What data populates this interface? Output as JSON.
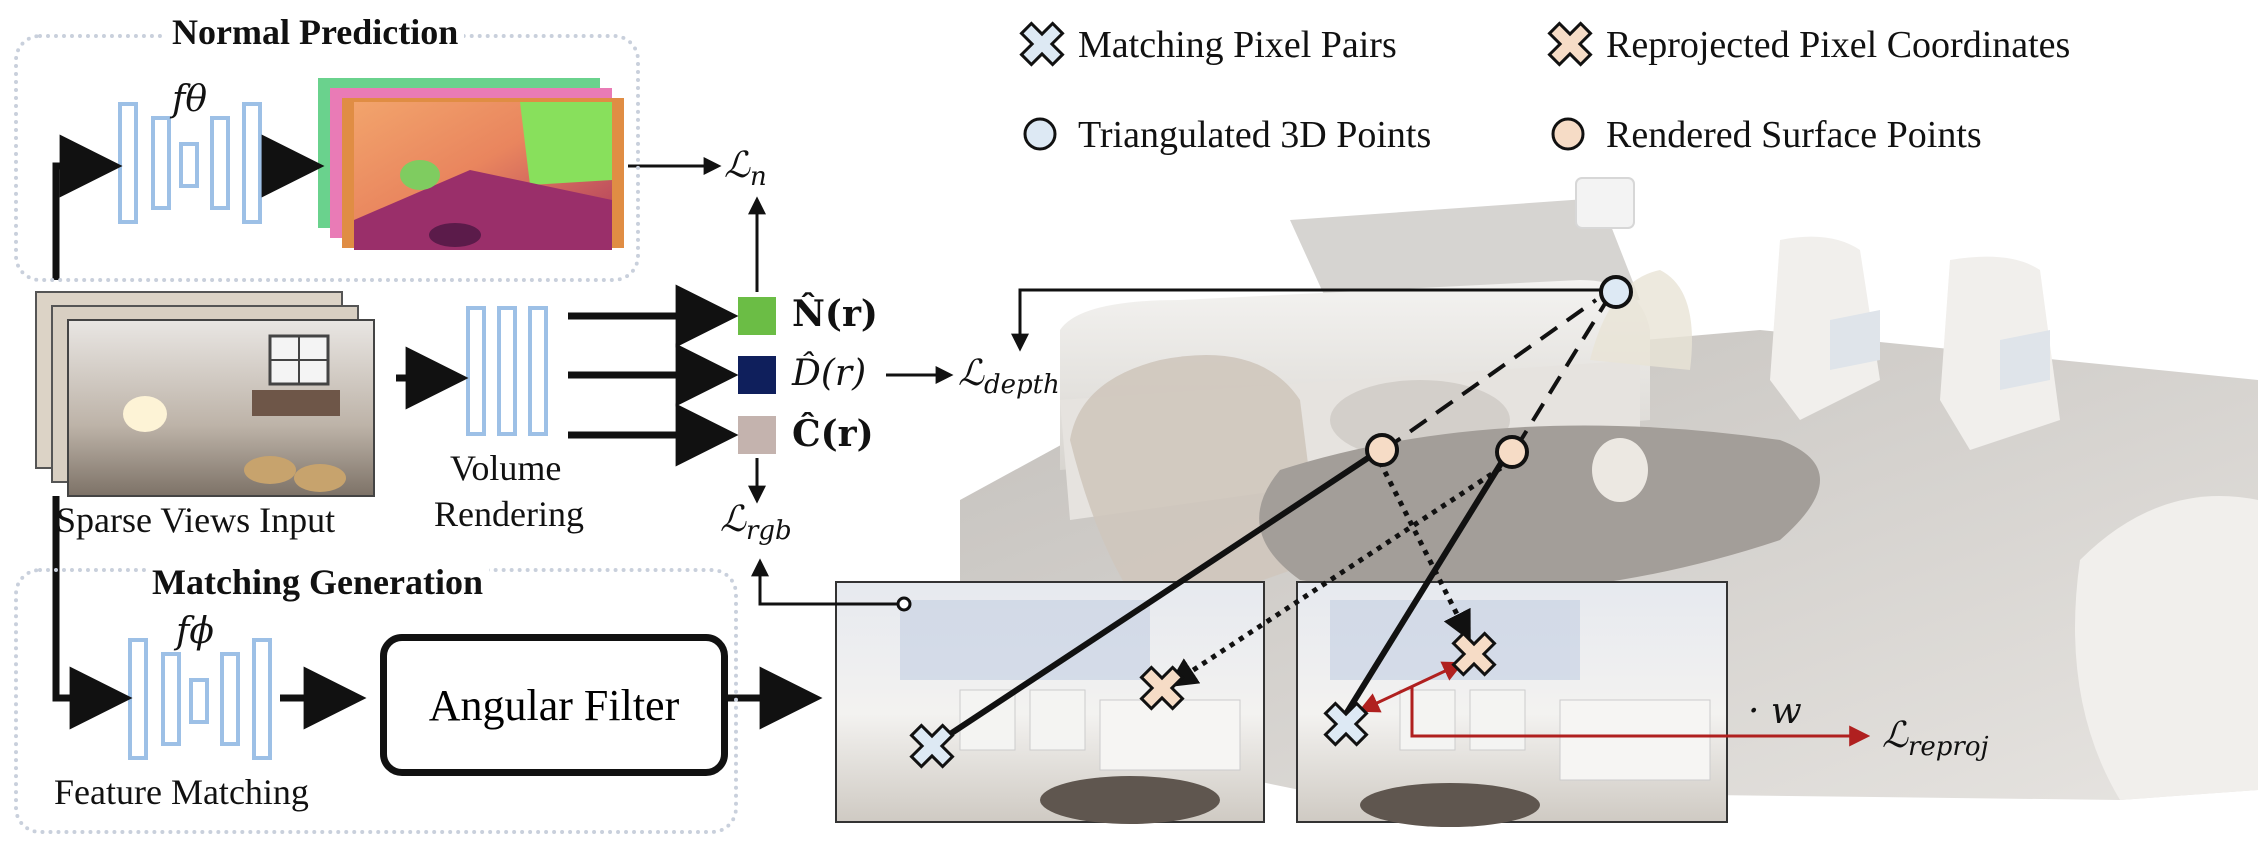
{
  "sections": {
    "normal_prediction": {
      "title": "Normal Prediction",
      "network": "fθ"
    },
    "matching_generation": {
      "title": "Matching Generation",
      "network": "fϕ",
      "caption": "Feature Matching"
    }
  },
  "inputs": {
    "caption": "Sparse Views Input"
  },
  "volume_rendering": {
    "caption_line1": "Volume",
    "caption_line2": "Rendering"
  },
  "renders": {
    "normal": {
      "label": "N̂(r)",
      "color": "#6bbd45"
    },
    "depth": {
      "label": "D̂(r)",
      "color": "#0f1f5c"
    },
    "color": {
      "label": "Ĉ(r)",
      "color": "#c4b3ae"
    }
  },
  "losses": {
    "normal": {
      "base": "ℒ",
      "sub": "n"
    },
    "depth": {
      "base": "ℒ",
      "sub": "depth"
    },
    "rgb": {
      "base": "ℒ",
      "sub": "rgb"
    },
    "reproj": {
      "base": "ℒ",
      "sub": "reproj"
    },
    "weight": "· w"
  },
  "angular_filter": {
    "label": "Angular Filter"
  },
  "legend": [
    {
      "label": "Matching Pixel Pairs",
      "marker": "cross",
      "color": "#dde9f4"
    },
    {
      "label": "Reprojected Pixel Coordinates",
      "marker": "cross",
      "color": "#f6dcc6"
    },
    {
      "label": "Triangulated 3D Points",
      "marker": "circle",
      "color": "#dde9f4"
    },
    {
      "label": "Rendered Surface Points",
      "marker": "circle",
      "color": "#f6dcc6"
    }
  ],
  "colors": {
    "reproj_arrow": "#b0201f",
    "net_outline": "#9dc0e6"
  }
}
